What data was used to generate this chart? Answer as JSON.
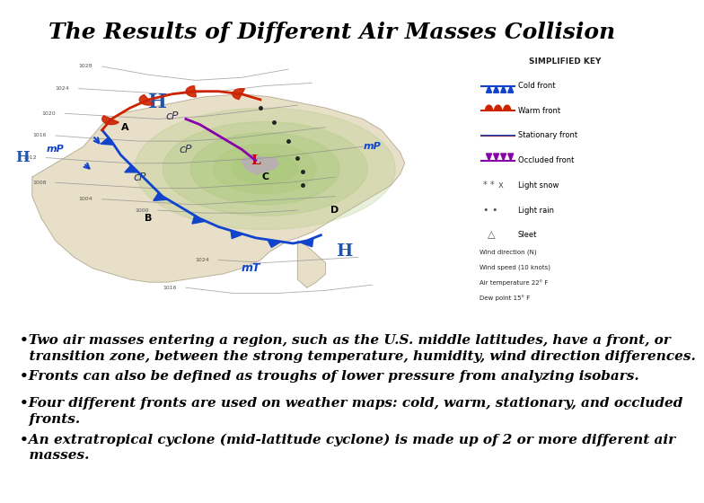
{
  "title": "The Results of Different Air Masses Collision",
  "title_fontsize": 18,
  "title_fontweight": "bold",
  "title_fontstyle": "italic",
  "background_color": "#ffffff",
  "bullet_points": [
    "•Two air masses entering a region, such as the U.S. middle latitudes, have a front, or transition zone, between the strong temperature, humidity, wind direction differences.",
    "•Fronts can also be defined as troughs of lower pressure from analyzing isobars.",
    "•Four different fronts are used on weather maps: cold, warm, stationary, and occluded fronts.",
    "•An extratropical cyclone (mid-latitude cyclone) is made up of 2 or more different air masses."
  ],
  "bullet_fontsize": 11,
  "bullet_fontstyle": "italic",
  "bullet_fontweight": "bold",
  "text_color": "#000000",
  "map_bg": "#c8dce8",
  "land_color": "#e8dfc8",
  "land_edge": "#b0a898",
  "green_low": "#a8c878",
  "green_low2": "#b8d488",
  "isobar_color": "#888888",
  "cold_front_color": "#1144cc",
  "warm_front_color": "#cc2200",
  "occluded_color": "#8800aa",
  "key_bg": "#dde8f0"
}
